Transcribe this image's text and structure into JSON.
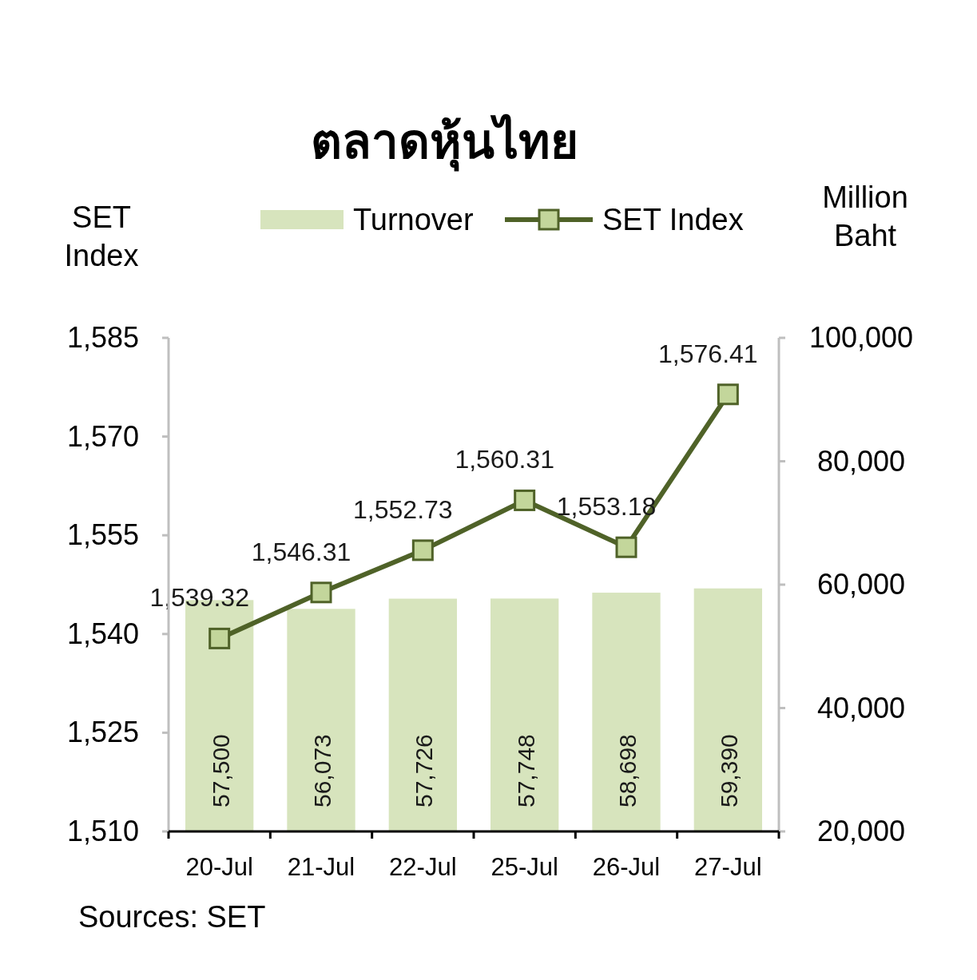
{
  "chart_data": {
    "type": "bar",
    "title": "ตลาดหุ้นไทย",
    "ylabel": "SET Index",
    "y2label": "Million Baht",
    "categories": [
      "20-Jul",
      "21-Jul",
      "22-Jul",
      "25-Jul",
      "26-Jul",
      "27-Jul"
    ],
    "series": [
      {
        "name": "Turnover",
        "axis": "y2",
        "color": "#d7e4bd",
        "values": [
          57500,
          56073,
          57726,
          57748,
          58698,
          59390
        ],
        "value_labels": [
          "57,500",
          "56,073",
          "57,726",
          "57,748",
          "58,698",
          "59,390"
        ]
      },
      {
        "name": "SET Index",
        "type": "line",
        "axis": "y",
        "color": "#4f6228",
        "marker": "square",
        "values": [
          1539.32,
          1546.31,
          1552.73,
          1560.31,
          1553.18,
          1576.41
        ],
        "value_labels": [
          "1,539.32",
          "1,546.31",
          "1,552.73",
          "1,560.31",
          "1,553.18",
          "1,576.41"
        ]
      }
    ],
    "ylim": [
      1510,
      1585
    ],
    "yticks": [
      {
        "value": 1510,
        "label": "1,510"
      },
      {
        "value": 1525,
        "label": "1,525"
      },
      {
        "value": 1540,
        "label": "1,540"
      },
      {
        "value": 1555,
        "label": "1,555"
      },
      {
        "value": 1570,
        "label": "1,570"
      },
      {
        "value": 1585,
        "label": "1,585"
      }
    ],
    "y2lim": [
      20000,
      100000
    ],
    "y2ticks": [
      {
        "value": 20000,
        "label": "20,000"
      },
      {
        "value": 40000,
        "label": "40,000"
      },
      {
        "value": 60000,
        "label": "60,000"
      },
      {
        "value": 80000,
        "label": "80,000"
      },
      {
        "value": 100000,
        "label": "100,000"
      }
    ],
    "legend": "top",
    "grid": false,
    "annotations": [
      "Sources: SET"
    ]
  }
}
